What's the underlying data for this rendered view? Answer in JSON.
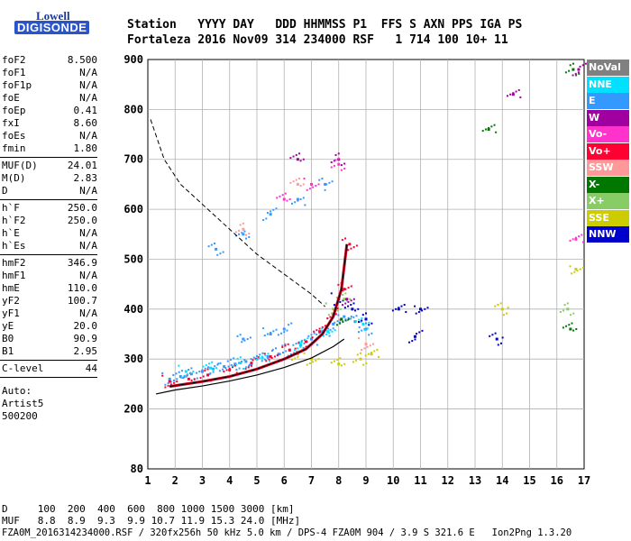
{
  "logo": {
    "top": "Lowell",
    "bottom": "DIGISONDE"
  },
  "header": {
    "line1": "Station   YYYY DAY   DDD HHMMSS P1  FFS S AXN PPS IGA PS",
    "line2": "Fortaleza 2016 Nov09 314 234000 RSF   1 714 100 10+ 11"
  },
  "params": {
    "group1": [
      {
        "label": "foF2",
        "value": "8.500"
      },
      {
        "label": "foF1",
        "value": "N/A"
      },
      {
        "label": "foF1p",
        "value": "N/A"
      },
      {
        "label": "foE",
        "value": "N/A"
      },
      {
        "label": "foEp",
        "value": "0.41"
      },
      {
        "label": "fxI",
        "value": "8.60"
      },
      {
        "label": "foEs",
        "value": "N/A"
      },
      {
        "label": "fmin",
        "value": "1.80"
      }
    ],
    "group2": [
      {
        "label": "MUF(D)",
        "value": "24.01"
      },
      {
        "label": "M(D)",
        "value": "2.83"
      },
      {
        "label": "D",
        "value": "N/A"
      }
    ],
    "group3": [
      {
        "label": "h`F",
        "value": "250.0"
      },
      {
        "label": "h`F2",
        "value": "250.0"
      },
      {
        "label": "h`E",
        "value": "N/A"
      },
      {
        "label": "h`Es",
        "value": "N/A"
      }
    ],
    "group4": [
      {
        "label": "hmF2",
        "value": "346.9"
      },
      {
        "label": "hmF1",
        "value": "N/A"
      },
      {
        "label": "hmE",
        "value": "110.0"
      },
      {
        "label": "yF2",
        "value": "100.7"
      },
      {
        "label": "yF1",
        "value": "N/A"
      },
      {
        "label": "yE",
        "value": "20.0"
      },
      {
        "label": "B0",
        "value": "90.9"
      },
      {
        "label": "B1",
        "value": "2.95"
      }
    ],
    "clevel": {
      "label": "C-level",
      "value": "44"
    },
    "auto": [
      "Auto:",
      "Artist5",
      "500200"
    ]
  },
  "footer": {
    "d_row": "D     100  200  400  600  800 1000 1500 3000 [km]",
    "muf_row": "MUF   8.8  8.9  9.3  9.9 10.7 11.9 15.3 24.0 [MHz]",
    "info": "FZA0M_2016314234000.RSF / 320fx256h 50 kHz 5.0 km / DPS-4 FZA0M 904 / 3.9 S 321.6 E   Ion2Png 1.3.20"
  },
  "legend": [
    {
      "label": "NoVal",
      "color": "#808080",
      "text": "#ffffff"
    },
    {
      "label": "NNE",
      "color": "#00e0ff",
      "text": "#ffffff"
    },
    {
      "label": "E",
      "color": "#3399ff",
      "text": "#ffffff"
    },
    {
      "label": "W",
      "color": "#a000a0",
      "text": "#ffffff"
    },
    {
      "label": "Vo-",
      "color": "#ff33cc",
      "text": "#ffffff"
    },
    {
      "label": "Vo+",
      "color": "#ff0033",
      "text": "#ffffff"
    },
    {
      "label": "SSW",
      "color": "#ff9999",
      "text": "#ffffff"
    },
    {
      "label": "X-",
      "color": "#007700",
      "text": "#ffffff"
    },
    {
      "label": "X+",
      "color": "#88cc66",
      "text": "#ffffff"
    },
    {
      "label": "SSE",
      "color": "#cccc00",
      "text": "#ffffff"
    },
    {
      "label": "NNW",
      "color": "#0000cc",
      "text": "#ffffff"
    }
  ],
  "chart_data": {
    "type": "scatter",
    "xlim": [
      1,
      17
    ],
    "ylim": [
      80,
      900
    ],
    "x_ticks": [
      1,
      2,
      3,
      4,
      5,
      6,
      7,
      8,
      9,
      10,
      11,
      12,
      13,
      14,
      15,
      16,
      17
    ],
    "y_ticks": [
      80,
      200,
      300,
      400,
      500,
      600,
      700,
      800,
      900
    ],
    "grid": true,
    "series": [
      {
        "name": "E",
        "color": "#3399ff",
        "points": [
          [
            1.8,
            260
          ],
          [
            2.2,
            265
          ],
          [
            2.6,
            270
          ],
          [
            3.0,
            275
          ],
          [
            3.4,
            280
          ],
          [
            3.8,
            285
          ],
          [
            4.2,
            290
          ],
          [
            4.6,
            295
          ],
          [
            5.0,
            300
          ],
          [
            5.4,
            305
          ],
          [
            5.8,
            310
          ],
          [
            6.2,
            318
          ],
          [
            6.6,
            328
          ],
          [
            7.0,
            340
          ],
          [
            7.4,
            355
          ],
          [
            7.8,
            370
          ],
          [
            8.2,
            385
          ],
          [
            8.6,
            375
          ],
          [
            9.0,
            360
          ],
          [
            5.5,
            350
          ],
          [
            6.0,
            360
          ],
          [
            4.5,
            340
          ],
          [
            3.5,
            520
          ],
          [
            4.5,
            550
          ],
          [
            5.5,
            590
          ],
          [
            6.5,
            620
          ],
          [
            7.5,
            650
          ]
        ]
      },
      {
        "name": "Vo+",
        "color": "#ff0033",
        "points": [
          [
            1.8,
            255
          ],
          [
            2.5,
            260
          ],
          [
            3.2,
            268
          ],
          [
            4.0,
            278
          ],
          [
            4.8,
            292
          ],
          [
            5.5,
            305
          ],
          [
            6.2,
            318
          ],
          [
            6.8,
            335
          ],
          [
            7.3,
            355
          ],
          [
            7.8,
            390
          ],
          [
            8.2,
            440
          ],
          [
            8.4,
            530
          ]
        ]
      },
      {
        "name": "NNE",
        "color": "#00e0ff",
        "points": [
          [
            2.4,
            275
          ],
          [
            3.3,
            282
          ],
          [
            4.4,
            292
          ],
          [
            5.2,
            302
          ],
          [
            6.6,
            330
          ],
          [
            7.6,
            355
          ],
          [
            8.9,
            370
          ]
        ]
      },
      {
        "name": "NNW",
        "color": "#0000cc",
        "points": [
          [
            8.0,
            420
          ],
          [
            8.5,
            400
          ],
          [
            9.0,
            380
          ],
          [
            10.2,
            400
          ],
          [
            10.8,
            345
          ],
          [
            11.0,
            400
          ],
          [
            13.8,
            340
          ]
        ]
      },
      {
        "name": "SSE",
        "color": "#cccc00",
        "points": [
          [
            7.0,
            300
          ],
          [
            8.0,
            290
          ],
          [
            8.8,
            300
          ],
          [
            9.2,
            310
          ],
          [
            6.5,
            310
          ],
          [
            16.7,
            480
          ],
          [
            14.0,
            400
          ]
        ]
      },
      {
        "name": "X-",
        "color": "#007700",
        "points": [
          [
            8.1,
            380
          ],
          [
            16.5,
            360
          ],
          [
            16.6,
            880
          ],
          [
            13.5,
            760
          ]
        ]
      },
      {
        "name": "X+",
        "color": "#88cc66",
        "points": [
          [
            7.8,
            400
          ],
          [
            8.2,
            420
          ],
          [
            16.4,
            400
          ]
        ]
      },
      {
        "name": "W",
        "color": "#a000a0",
        "points": [
          [
            8.3,
            420
          ],
          [
            6.5,
            700
          ],
          [
            8.0,
            700
          ],
          [
            14.4,
            830
          ],
          [
            16.8,
            880
          ]
        ]
      },
      {
        "name": "Vo-",
        "color": "#ff33cc",
        "points": [
          [
            7.0,
            650
          ],
          [
            6.0,
            620
          ],
          [
            8.0,
            690
          ],
          [
            16.7,
            540
          ]
        ]
      },
      {
        "name": "SSW",
        "color": "#ff9999",
        "points": [
          [
            9.0,
            330
          ],
          [
            6.5,
            650
          ],
          [
            4.5,
            560
          ]
        ]
      }
    ],
    "profile_line": [
      [
        1.3,
        230
      ],
      [
        2,
        238
      ],
      [
        3,
        246
      ],
      [
        4,
        256
      ],
      [
        5,
        268
      ],
      [
        6,
        283
      ],
      [
        7,
        302
      ],
      [
        7.8,
        325
      ],
      [
        8.2,
        340
      ]
    ],
    "trace_line": [
      [
        1.8,
        245
      ],
      [
        3,
        255
      ],
      [
        4,
        265
      ],
      [
        5,
        280
      ],
      [
        6,
        300
      ],
      [
        6.8,
        320
      ],
      [
        7.4,
        350
      ],
      [
        7.8,
        385
      ],
      [
        8.1,
        440
      ],
      [
        8.3,
        530
      ]
    ],
    "muf_curve": [
      [
        1.1,
        780
      ],
      [
        1.6,
        700
      ],
      [
        2.2,
        650
      ],
      [
        3,
        610
      ],
      [
        4,
        560
      ],
      [
        5,
        510
      ],
      [
        6,
        470
      ],
      [
        7,
        430
      ],
      [
        7.5,
        405
      ]
    ]
  }
}
